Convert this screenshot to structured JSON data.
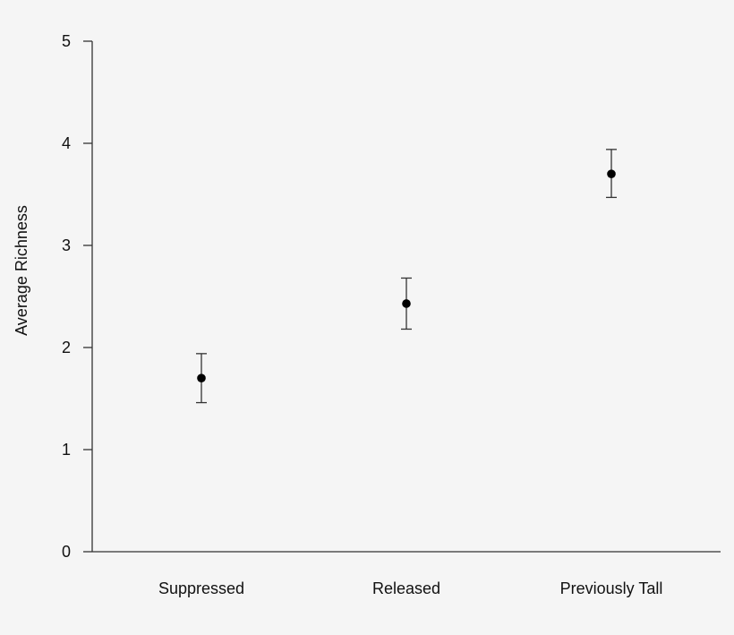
{
  "chart_data": {
    "type": "scatter",
    "subtype": "point-with-error-bars",
    "categories": [
      "Suppressed",
      "Released",
      "Previously Tall"
    ],
    "values": [
      1.7,
      2.43,
      3.7
    ],
    "error_low": [
      1.46,
      2.18,
      3.47
    ],
    "error_high": [
      1.94,
      2.68,
      3.94
    ],
    "title": "",
    "xlabel": "",
    "ylabel": "Average Richness",
    "ylim": [
      0,
      5
    ],
    "yticks": [
      "0",
      "1",
      "2",
      "3",
      "4",
      "5"
    ],
    "grid": false,
    "legend": "none",
    "colors": {
      "background": "#f5f5f5",
      "axis": "#333333",
      "point": "#000000",
      "text": "#111111"
    }
  }
}
